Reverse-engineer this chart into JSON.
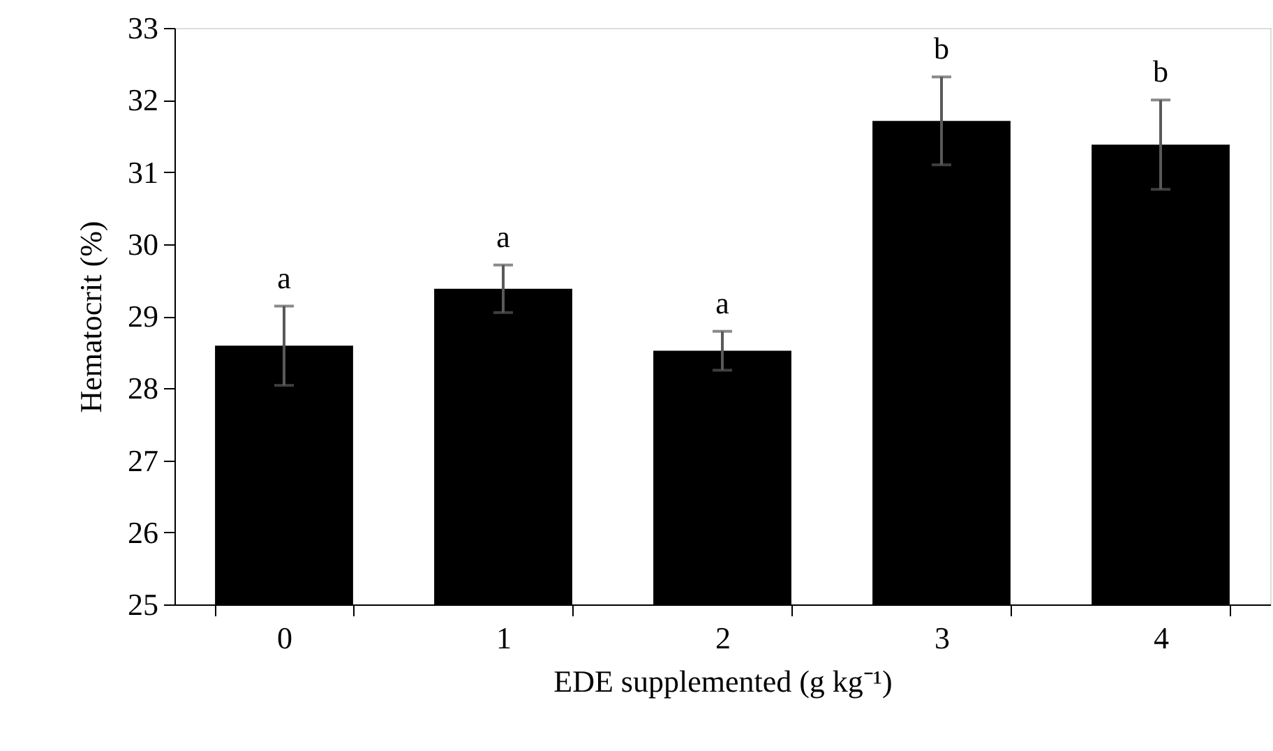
{
  "chart_data": {
    "type": "bar",
    "xlabel": "EDE supplemented (g kg⁻¹)",
    "ylabel": "Hematocrit (%)",
    "categories": [
      "0",
      "1",
      "2",
      "3",
      "4"
    ],
    "values": [
      28.59,
      29.38,
      28.52,
      31.71,
      31.38
    ],
    "errors": [
      0.55,
      0.33,
      0.27,
      0.61,
      0.62
    ],
    "color": "#000000",
    "ylim": [
      25,
      33
    ],
    "yticks": [
      25,
      26,
      27,
      28,
      29,
      30,
      31,
      32,
      33
    ],
    "grid": false,
    "annotations": [
      "a",
      "a",
      "a",
      "b",
      "b"
    ]
  }
}
